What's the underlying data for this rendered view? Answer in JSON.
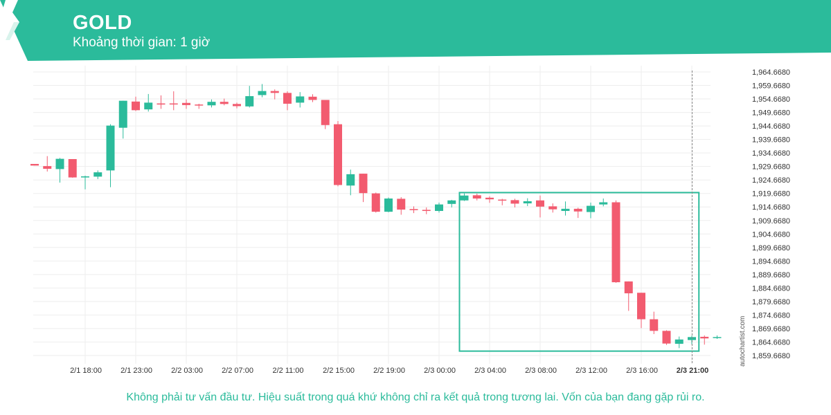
{
  "header": {
    "symbol": "GOLD",
    "timeframe": "Khoảng thời gian: 1 giờ",
    "brand_color": "#2bbb9b",
    "logo_icon": "autochartist-logo-icon"
  },
  "watermark": "autochartist.com",
  "disclaimer": "Không phải tư vấn đầu tư. Hiệu suất trong quá khứ không chỉ ra kết quả trong tương lai. Vốn của bạn đang gặp rủi ro.",
  "chart_data": {
    "type": "candlestick",
    "colors": {
      "up": "#2bbb9b",
      "down": "#f25b6f",
      "grid": "#eeeeee",
      "box": "#2bbb9b"
    },
    "ylim": [
      1857.5,
      1967.5
    ],
    "y_ticks": [
      "1,964.6680",
      "1,959.6680",
      "1,954.6680",
      "1,949.6680",
      "1,944.6680",
      "1,939.6680",
      "1,934.6680",
      "1,929.6680",
      "1,924.6680",
      "1,919.6680",
      "1,914.6680",
      "1,909.6680",
      "1,904.6680",
      "1,899.6680",
      "1,894.6680",
      "1,889.6680",
      "1,884.6680",
      "1,879.6680",
      "1,874.6680",
      "1,869.6680",
      "1,864.6680",
      "1,859.6680"
    ],
    "y_tick_values": [
      1964.668,
      1959.668,
      1954.668,
      1949.668,
      1944.668,
      1939.668,
      1934.668,
      1929.668,
      1924.668,
      1919.668,
      1914.668,
      1909.668,
      1904.668,
      1899.668,
      1894.668,
      1889.668,
      1884.668,
      1879.668,
      1874.668,
      1869.668,
      1864.668,
      1859.668
    ],
    "x_ticks": [
      {
        "label": "2/1 18:00",
        "index": 4
      },
      {
        "label": "2/1 23:00",
        "index": 8
      },
      {
        "label": "2/2 03:00",
        "index": 12
      },
      {
        "label": "2/2 07:00",
        "index": 16
      },
      {
        "label": "2/2 11:00",
        "index": 20
      },
      {
        "label": "2/2 15:00",
        "index": 24
      },
      {
        "label": "2/2 19:00",
        "index": 28
      },
      {
        "label": "2/3 00:00",
        "index": 32
      },
      {
        "label": "2/3 04:00",
        "index": 36
      },
      {
        "label": "2/3 08:00",
        "index": 40
      },
      {
        "label": "2/3 12:00",
        "index": 44
      },
      {
        "label": "2/3 16:00",
        "index": 48
      },
      {
        "label": "2/3 21:00",
        "index": 52,
        "bold": true
      }
    ],
    "candles": [
      {
        "o": 1930.6,
        "h": 1930.6,
        "l": 1930.0,
        "c": 1930.0
      },
      {
        "o": 1929.8,
        "h": 1933.5,
        "l": 1927.8,
        "c": 1928.8
      },
      {
        "o": 1928.7,
        "h": 1932.8,
        "l": 1923.7,
        "c": 1932.5
      },
      {
        "o": 1932.4,
        "h": 1932.4,
        "l": 1925.5,
        "c": 1925.6
      },
      {
        "o": 1925.6,
        "h": 1926.3,
        "l": 1921.2,
        "c": 1926.0
      },
      {
        "o": 1925.9,
        "h": 1928.2,
        "l": 1925.0,
        "c": 1927.5
      },
      {
        "o": 1928.2,
        "h": 1945.3,
        "l": 1922.0,
        "c": 1944.8
      },
      {
        "o": 1944.0,
        "h": 1954.0,
        "l": 1940.0,
        "c": 1954.0
      },
      {
        "o": 1953.7,
        "h": 1955.5,
        "l": 1950.2,
        "c": 1950.5
      },
      {
        "o": 1950.8,
        "h": 1956.5,
        "l": 1950.0,
        "c": 1953.3
      },
      {
        "o": 1953.0,
        "h": 1956.0,
        "l": 1951.0,
        "c": 1952.6
      },
      {
        "o": 1953.0,
        "h": 1957.5,
        "l": 1950.5,
        "c": 1952.7
      },
      {
        "o": 1953.2,
        "h": 1954.5,
        "l": 1951.0,
        "c": 1952.4
      },
      {
        "o": 1952.6,
        "h": 1952.9,
        "l": 1951.0,
        "c": 1952.4
      },
      {
        "o": 1952.3,
        "h": 1954.5,
        "l": 1951.5,
        "c": 1953.6
      },
      {
        "o": 1953.6,
        "h": 1954.8,
        "l": 1952.3,
        "c": 1952.8
      },
      {
        "o": 1952.8,
        "h": 1953.3,
        "l": 1951.2,
        "c": 1952.0
      },
      {
        "o": 1951.9,
        "h": 1959.5,
        "l": 1951.5,
        "c": 1955.7
      },
      {
        "o": 1956.1,
        "h": 1960.2,
        "l": 1955.3,
        "c": 1957.6
      },
      {
        "o": 1957.6,
        "h": 1958.2,
        "l": 1954.5,
        "c": 1956.9
      },
      {
        "o": 1956.9,
        "h": 1957.5,
        "l": 1950.5,
        "c": 1952.9
      },
      {
        "o": 1953.3,
        "h": 1957.2,
        "l": 1951.5,
        "c": 1955.6
      },
      {
        "o": 1955.5,
        "h": 1956.4,
        "l": 1953.5,
        "c": 1954.3
      },
      {
        "o": 1954.3,
        "h": 1954.3,
        "l": 1943.5,
        "c": 1945.0
      },
      {
        "o": 1945.3,
        "h": 1946.5,
        "l": 1922.3,
        "c": 1922.8
      },
      {
        "o": 1922.6,
        "h": 1928.5,
        "l": 1919.0,
        "c": 1926.8
      },
      {
        "o": 1927.0,
        "h": 1927.0,
        "l": 1916.5,
        "c": 1919.8
      },
      {
        "o": 1919.7,
        "h": 1920.0,
        "l": 1912.6,
        "c": 1912.9
      },
      {
        "o": 1912.9,
        "h": 1918.2,
        "l": 1912.7,
        "c": 1917.8
      },
      {
        "o": 1917.7,
        "h": 1918.3,
        "l": 1911.8,
        "c": 1913.7
      },
      {
        "o": 1913.9,
        "h": 1914.9,
        "l": 1912.4,
        "c": 1913.5
      },
      {
        "o": 1913.6,
        "h": 1914.5,
        "l": 1912.0,
        "c": 1913.2
      },
      {
        "o": 1913.2,
        "h": 1916.3,
        "l": 1912.6,
        "c": 1915.6
      },
      {
        "o": 1915.8,
        "h": 1917.3,
        "l": 1914.5,
        "c": 1917.1
      },
      {
        "o": 1917.1,
        "h": 1919.7,
        "l": 1916.9,
        "c": 1918.9
      },
      {
        "o": 1919.0,
        "h": 1919.6,
        "l": 1917.1,
        "c": 1917.8
      },
      {
        "o": 1918.1,
        "h": 1918.6,
        "l": 1916.2,
        "c": 1917.5
      },
      {
        "o": 1917.4,
        "h": 1917.7,
        "l": 1915.3,
        "c": 1917.1
      },
      {
        "o": 1917.2,
        "h": 1917.7,
        "l": 1914.5,
        "c": 1915.9
      },
      {
        "o": 1916.0,
        "h": 1917.9,
        "l": 1915.0,
        "c": 1916.8
      },
      {
        "o": 1917.1,
        "h": 1918.9,
        "l": 1910.8,
        "c": 1914.8
      },
      {
        "o": 1914.9,
        "h": 1916.0,
        "l": 1912.6,
        "c": 1913.8
      },
      {
        "o": 1913.2,
        "h": 1916.7,
        "l": 1911.5,
        "c": 1914.0
      },
      {
        "o": 1914.0,
        "h": 1914.4,
        "l": 1910.6,
        "c": 1913.0
      },
      {
        "o": 1912.8,
        "h": 1916.3,
        "l": 1910.5,
        "c": 1915.1
      },
      {
        "o": 1915.6,
        "h": 1917.8,
        "l": 1914.9,
        "c": 1916.4
      },
      {
        "o": 1916.4,
        "h": 1917.1,
        "l": 1886.6,
        "c": 1886.8
      },
      {
        "o": 1887.1,
        "h": 1887.1,
        "l": 1876.2,
        "c": 1882.7
      },
      {
        "o": 1882.9,
        "h": 1882.9,
        "l": 1869.8,
        "c": 1873.1
      },
      {
        "o": 1873.1,
        "h": 1875.9,
        "l": 1867.6,
        "c": 1868.8
      },
      {
        "o": 1868.8,
        "h": 1869.0,
        "l": 1863.6,
        "c": 1864.1
      },
      {
        "o": 1864.0,
        "h": 1866.7,
        "l": 1862.4,
        "c": 1865.6
      },
      {
        "o": 1865.4,
        "h": 1867.0,
        "l": 1863.8,
        "c": 1866.5
      },
      {
        "o": 1866.6,
        "h": 1867.1,
        "l": 1863.7,
        "c": 1866.0
      },
      {
        "o": 1866.3,
        "h": 1867.1,
        "l": 1865.8,
        "c": 1866.5
      }
    ],
    "highlight_box": {
      "from_index": 34,
      "to_index": 53,
      "y_top": 1920.0,
      "y_bottom": 1861.3
    },
    "current_marker_index": 52
  }
}
